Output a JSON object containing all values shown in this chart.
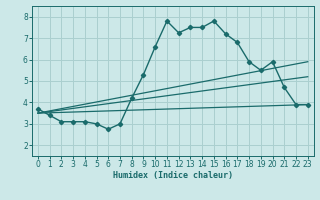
{
  "xlabel": "Humidex (Indice chaleur)",
  "bg_color": "#cce8e8",
  "grid_color": "#aacfcf",
  "line_color": "#1a6b6b",
  "xlim": [
    -0.5,
    23.5
  ],
  "ylim": [
    1.5,
    8.5
  ],
  "xticks": [
    0,
    1,
    2,
    3,
    4,
    5,
    6,
    7,
    8,
    9,
    10,
    11,
    12,
    13,
    14,
    15,
    16,
    17,
    18,
    19,
    20,
    21,
    22,
    23
  ],
  "yticks": [
    2,
    3,
    4,
    5,
    6,
    7,
    8
  ],
  "curve1_x": [
    0,
    1,
    2,
    3,
    4,
    5,
    6,
    7,
    8,
    9,
    10,
    11,
    12,
    13,
    14,
    15,
    16,
    17,
    18,
    19,
    20,
    21,
    22,
    23
  ],
  "curve1_y": [
    3.7,
    3.4,
    3.1,
    3.1,
    3.1,
    3.0,
    2.75,
    3.0,
    4.2,
    5.3,
    6.6,
    7.8,
    7.25,
    7.5,
    7.5,
    7.8,
    7.2,
    6.8,
    5.9,
    5.5,
    5.9,
    4.7,
    3.9,
    3.9
  ],
  "line1_x": [
    0,
    23
  ],
  "line1_y": [
    3.5,
    5.2
  ],
  "line2_x": [
    0,
    23
  ],
  "line2_y": [
    3.5,
    3.9
  ],
  "line3_x": [
    0,
    23
  ],
  "line3_y": [
    3.5,
    5.9
  ]
}
